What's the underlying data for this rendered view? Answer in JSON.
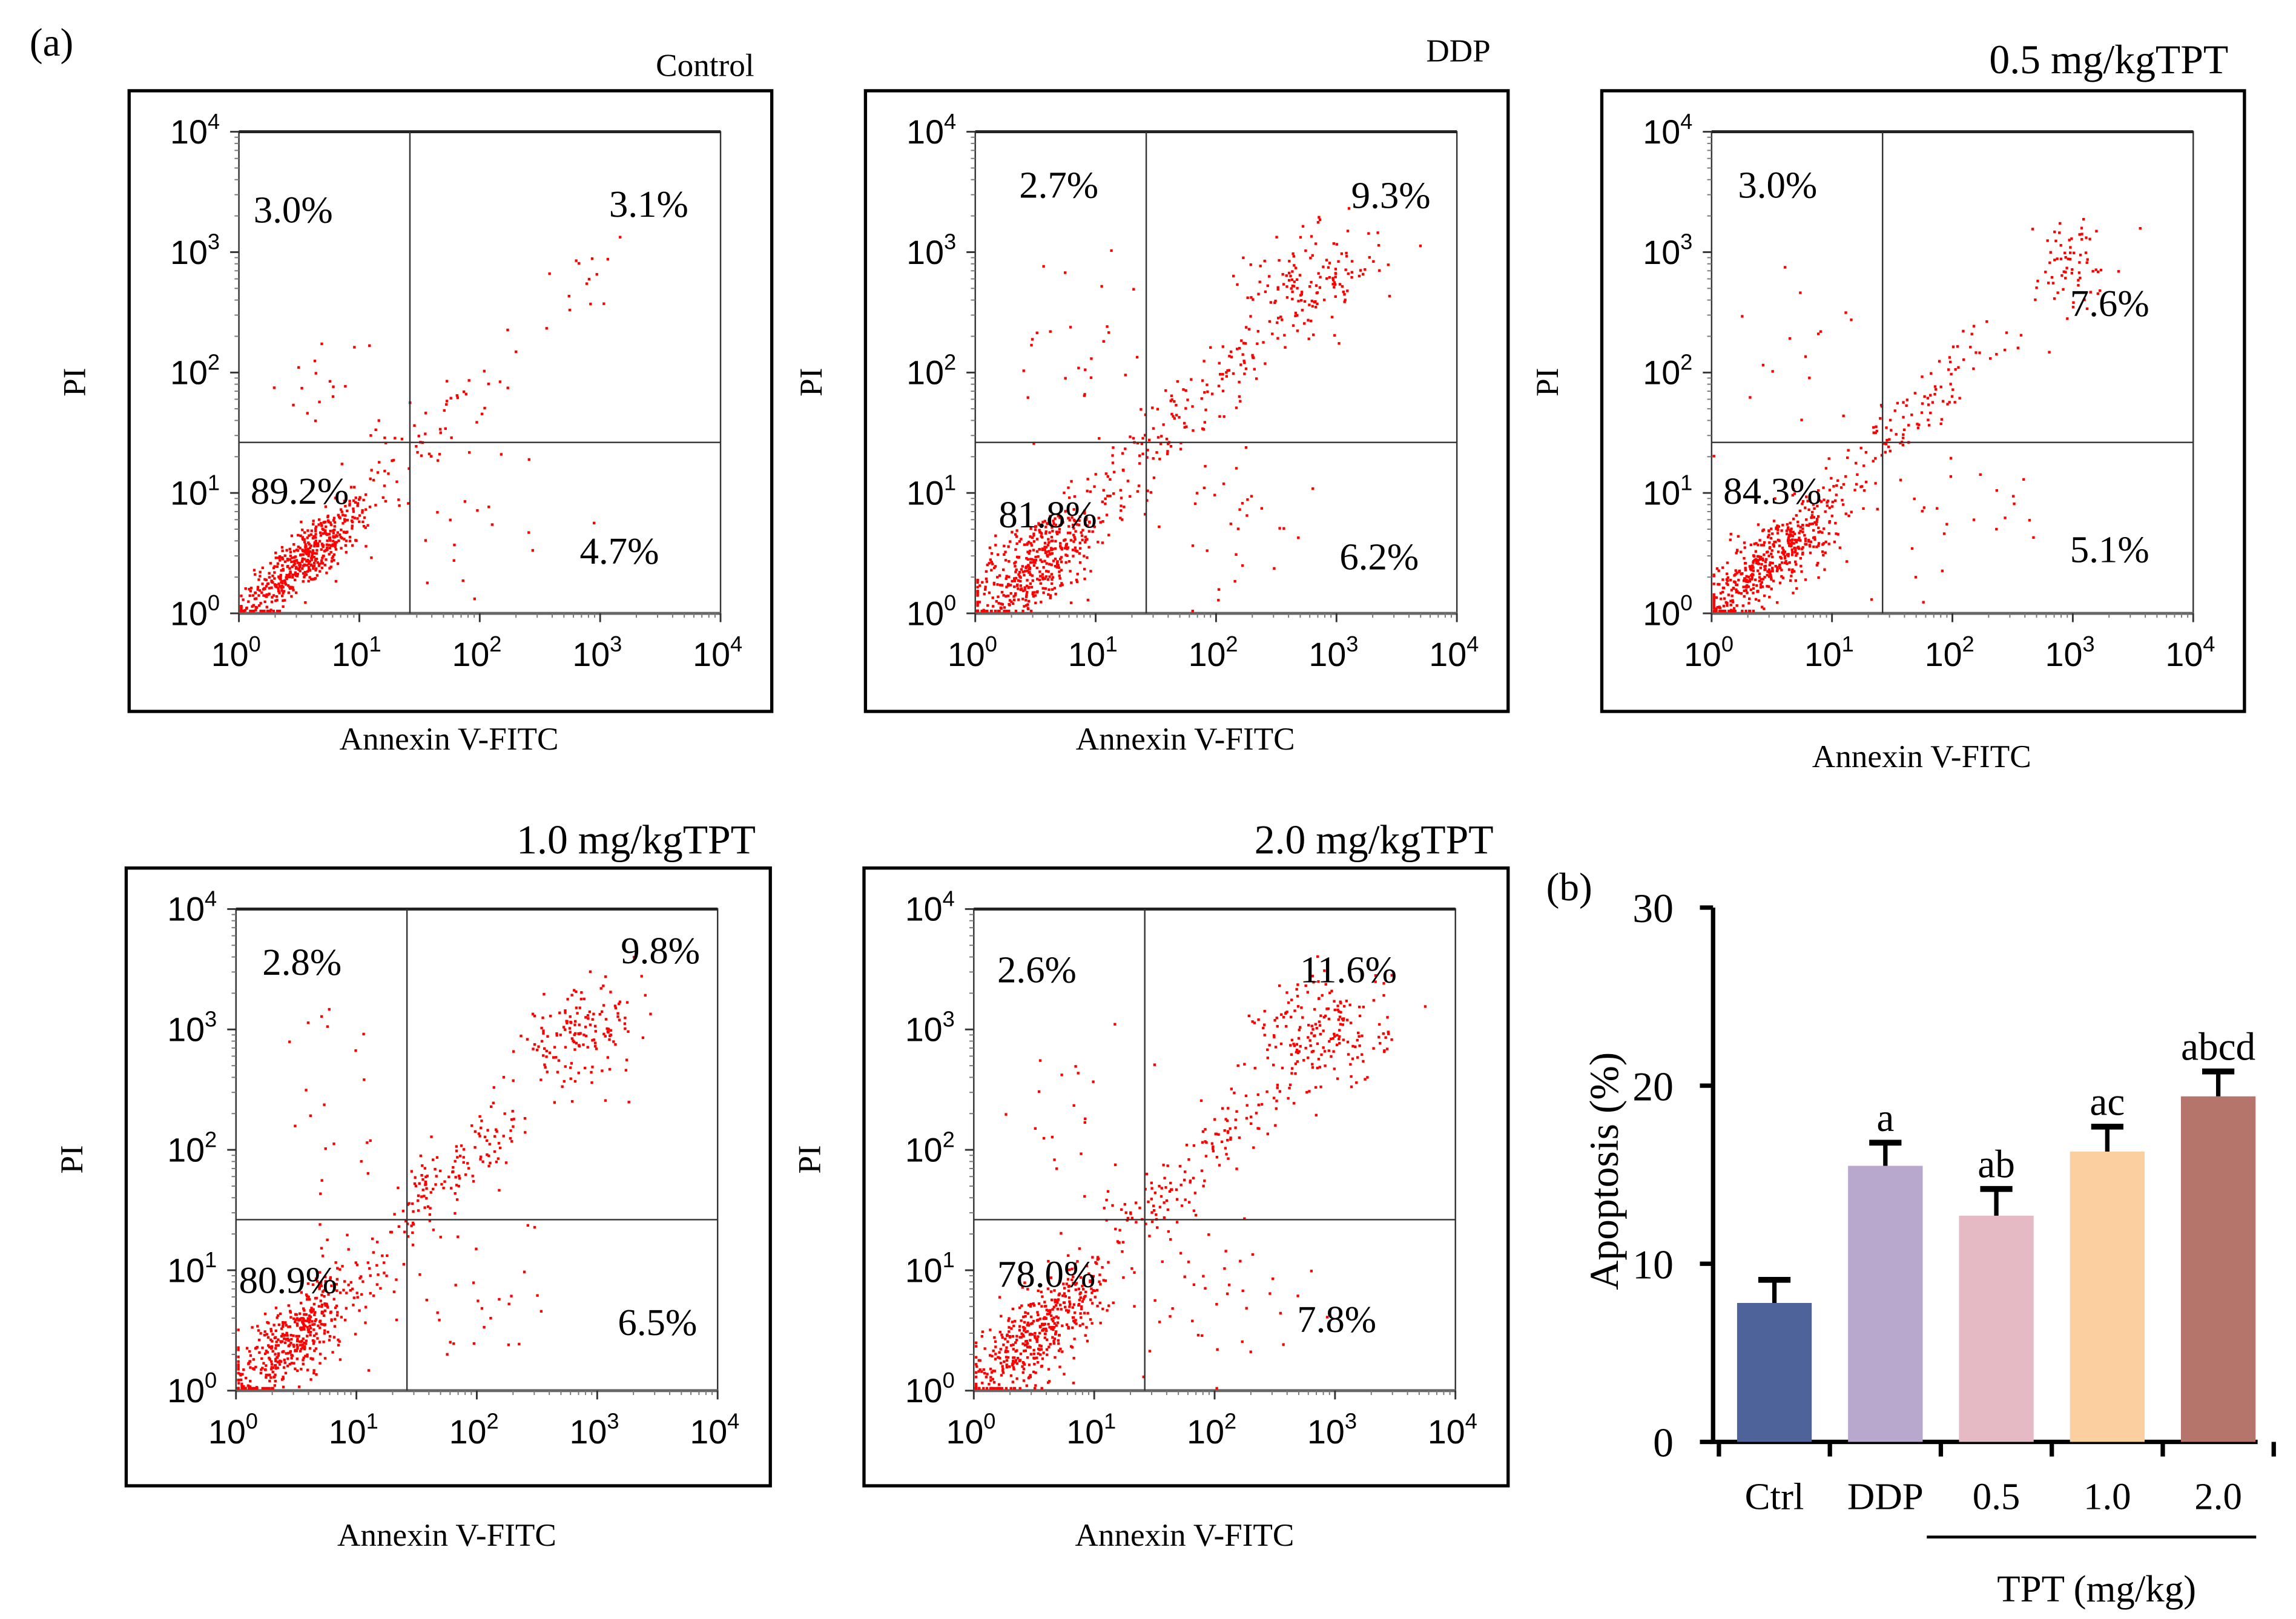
{
  "figure": {
    "label_a": "(a)",
    "label_b": "(b)"
  },
  "chart_data": [
    {
      "type": "scatter",
      "title": "Control",
      "xlabel": "Annexin V-FITC",
      "ylabel": "PI",
      "xscale": "log",
      "yscale": "log",
      "xlim": [
        1,
        10000
      ],
      "ylim": [
        1,
        10000
      ],
      "xticks": [
        "10^0",
        "10^1",
        "10^2",
        "10^3",
        "10^4"
      ],
      "yticks": [
        "10^0",
        "10^1",
        "10^2",
        "10^3",
        "10^4"
      ],
      "gate_log10": {
        "x": 1.42,
        "y": 1.42
      },
      "quadrants": {
        "upper_left": "3.0%",
        "upper_right": "3.1%",
        "lower_left": "89.2%",
        "lower_right": "4.7%"
      },
      "point_color": "#ff0000",
      "populations_log10": [
        {
          "cx": 0.55,
          "cy": 0.45,
          "sx": 0.28,
          "sy": 0.25,
          "rho": 0.85,
          "n": 520
        },
        {
          "cx": 1.55,
          "cy": 1.5,
          "sx": 0.25,
          "sy": 0.22,
          "rho": 0.7,
          "n": 45
        },
        {
          "cx": 2.5,
          "cy": 2.4,
          "sx": 0.4,
          "sy": 0.4,
          "rho": 0.9,
          "n": 22
        },
        {
          "cx": 1.9,
          "cy": 0.8,
          "sx": 0.35,
          "sy": 0.35,
          "rho": 0.0,
          "n": 20
        },
        {
          "cx": 0.8,
          "cy": 1.9,
          "sx": 0.25,
          "sy": 0.3,
          "rho": 0.0,
          "n": 18
        }
      ]
    },
    {
      "type": "scatter",
      "title": "DDP",
      "xlabel": "Annexin V-FITC",
      "ylabel": "PI",
      "xscale": "log",
      "yscale": "log",
      "xlim": [
        1,
        10000
      ],
      "ylim": [
        1,
        10000
      ],
      "xticks": [
        "10^0",
        "10^1",
        "10^2",
        "10^3",
        "10^4"
      ],
      "yticks": [
        "10^0",
        "10^1",
        "10^2",
        "10^3",
        "10^4"
      ],
      "gate_log10": {
        "x": 1.42,
        "y": 1.42
      },
      "quadrants": {
        "upper_left": "2.7%",
        "upper_right": "9.3%",
        "lower_left": "81.8%",
        "lower_right": "6.2%"
      },
      "point_color": "#ff0000",
      "populations_log10": [
        {
          "cx": 0.5,
          "cy": 0.4,
          "sx": 0.32,
          "sy": 0.3,
          "rho": 0.75,
          "n": 480
        },
        {
          "cx": 1.5,
          "cy": 1.5,
          "sx": 0.25,
          "sy": 0.25,
          "rho": 0.7,
          "n": 70
        },
        {
          "cx": 2.1,
          "cy": 2.0,
          "sx": 0.25,
          "sy": 0.25,
          "rho": 0.8,
          "n": 60
        },
        {
          "cx": 2.8,
          "cy": 2.75,
          "sx": 0.28,
          "sy": 0.22,
          "rho": 0.3,
          "n": 150
        },
        {
          "cx": 2.0,
          "cy": 0.8,
          "sx": 0.45,
          "sy": 0.35,
          "rho": 0.0,
          "n": 35
        },
        {
          "cx": 0.9,
          "cy": 2.2,
          "sx": 0.3,
          "sy": 0.45,
          "rho": 0.0,
          "n": 25
        }
      ]
    },
    {
      "type": "scatter",
      "title": "0.5 mg/kgTPT",
      "xlabel": "Annexin V-FITC",
      "ylabel": "PI",
      "xscale": "log",
      "yscale": "log",
      "xlim": [
        1,
        10000
      ],
      "ylim": [
        1,
        10000
      ],
      "xticks": [
        "10^0",
        "10^1",
        "10^2",
        "10^3",
        "10^4"
      ],
      "yticks": [
        "10^0",
        "10^1",
        "10^2",
        "10^3",
        "10^4"
      ],
      "gate_log10": {
        "x": 1.42,
        "y": 1.42
      },
      "quadrants": {
        "upper_left": "3.0%",
        "upper_right": "7.6%",
        "lower_left": "84.3%",
        "lower_right": "5.1%"
      },
      "point_color": "#ff0000",
      "populations_log10": [
        {
          "cx": 0.5,
          "cy": 0.45,
          "sx": 0.3,
          "sy": 0.28,
          "rho": 0.8,
          "n": 500
        },
        {
          "cx": 1.55,
          "cy": 1.55,
          "sx": 0.22,
          "sy": 0.22,
          "rho": 0.7,
          "n": 55
        },
        {
          "cx": 2.1,
          "cy": 2.1,
          "sx": 0.25,
          "sy": 0.25,
          "rho": 0.8,
          "n": 40
        },
        {
          "cx": 2.95,
          "cy": 2.85,
          "sx": 0.22,
          "sy": 0.25,
          "rho": 0.3,
          "n": 70
        },
        {
          "cx": 2.0,
          "cy": 0.9,
          "sx": 0.45,
          "sy": 0.35,
          "rho": 0.0,
          "n": 28
        },
        {
          "cx": 0.8,
          "cy": 2.0,
          "sx": 0.3,
          "sy": 0.4,
          "rho": 0.0,
          "n": 20
        }
      ]
    },
    {
      "type": "scatter",
      "title": "1.0 mg/kgTPT",
      "xlabel": "Annexin V-FITC",
      "ylabel": "PI",
      "xscale": "log",
      "yscale": "log",
      "xlim": [
        1,
        10000
      ],
      "ylim": [
        1,
        10000
      ],
      "xticks": [
        "10^0",
        "10^1",
        "10^2",
        "10^3",
        "10^4"
      ],
      "yticks": [
        "10^0",
        "10^1",
        "10^2",
        "10^3",
        "10^4"
      ],
      "gate_log10": {
        "x": 1.42,
        "y": 1.42
      },
      "quadrants": {
        "upper_left": "2.8%",
        "upper_right": "9.8%",
        "lower_left": "80.9%",
        "lower_right": "6.5%"
      },
      "point_color": "#ff0000",
      "populations_log10": [
        {
          "cx": 0.5,
          "cy": 0.45,
          "sx": 0.32,
          "sy": 0.3,
          "rho": 0.8,
          "n": 480
        },
        {
          "cx": 1.55,
          "cy": 1.6,
          "sx": 0.25,
          "sy": 0.25,
          "rho": 0.7,
          "n": 70
        },
        {
          "cx": 2.1,
          "cy": 2.1,
          "sx": 0.25,
          "sy": 0.25,
          "rho": 0.8,
          "n": 60
        },
        {
          "cx": 2.85,
          "cy": 2.95,
          "sx": 0.25,
          "sy": 0.2,
          "rho": 0.3,
          "n": 150
        },
        {
          "cx": 1.9,
          "cy": 0.8,
          "sx": 0.4,
          "sy": 0.35,
          "rho": 0.0,
          "n": 35
        },
        {
          "cx": 0.8,
          "cy": 2.1,
          "sx": 0.25,
          "sy": 0.5,
          "rho": 0.0,
          "n": 22
        }
      ]
    },
    {
      "type": "scatter",
      "title": "2.0 mg/kgTPT",
      "xlabel": "Annexin V-FITC",
      "ylabel": "PI",
      "xscale": "log",
      "yscale": "log",
      "xlim": [
        1,
        10000
      ],
      "ylim": [
        1,
        10000
      ],
      "xticks": [
        "10^0",
        "10^1",
        "10^2",
        "10^3",
        "10^4"
      ],
      "yticks": [
        "10^0",
        "10^1",
        "10^2",
        "10^3",
        "10^4"
      ],
      "gate_log10": {
        "x": 1.42,
        "y": 1.42
      },
      "quadrants": {
        "upper_left": "2.6%",
        "upper_right": "11.6%",
        "lower_left": "78.0%",
        "lower_right": "7.8%"
      },
      "point_color": "#ff0000",
      "populations_log10": [
        {
          "cx": 0.5,
          "cy": 0.45,
          "sx": 0.32,
          "sy": 0.3,
          "rho": 0.8,
          "n": 470
        },
        {
          "cx": 1.55,
          "cy": 1.6,
          "sx": 0.25,
          "sy": 0.25,
          "rho": 0.7,
          "n": 80
        },
        {
          "cx": 2.15,
          "cy": 2.15,
          "sx": 0.25,
          "sy": 0.25,
          "rho": 0.8,
          "n": 60
        },
        {
          "cx": 2.9,
          "cy": 2.95,
          "sx": 0.28,
          "sy": 0.25,
          "rho": 0.2,
          "n": 200
        },
        {
          "cx": 2.0,
          "cy": 0.8,
          "sx": 0.45,
          "sy": 0.35,
          "rho": 0.0,
          "n": 40
        },
        {
          "cx": 0.9,
          "cy": 2.1,
          "sx": 0.3,
          "sy": 0.45,
          "rho": 0.0,
          "n": 22
        }
      ]
    },
    {
      "type": "bar",
      "title": "",
      "xlabel": "TPT (mg/kg)",
      "ylabel": "Apoptosis (%)",
      "ylim": [
        0,
        30
      ],
      "yticks": [
        0,
        10,
        20,
        30
      ],
      "categories": [
        "Ctrl",
        "DDP",
        "0.5",
        "1.0",
        "2.0"
      ],
      "values": [
        7.8,
        15.5,
        12.7,
        16.3,
        19.4
      ],
      "errors": [
        1.3,
        1.3,
        1.5,
        1.4,
        1.4
      ],
      "significance": [
        "",
        "a",
        "ab",
        "ac",
        "abcd"
      ],
      "colors": [
        "#4e6399",
        "#b8a8ce",
        "#e6bac4",
        "#fbcfa0",
        "#b5756b"
      ],
      "group_bracket": {
        "label": "TPT (mg/kg)",
        "spans": [
          "0.5",
          "1.0",
          "2.0"
        ]
      }
    }
  ]
}
